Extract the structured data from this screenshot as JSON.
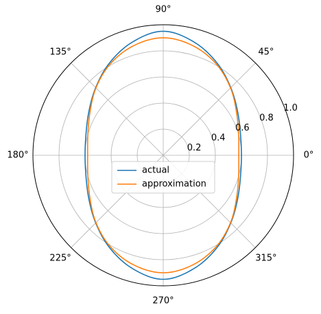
{
  "chart_data": {
    "type": "line",
    "projection": "polar",
    "theta_unit": "degrees",
    "angle_ticks": [
      {
        "value": 0,
        "label": "0°"
      },
      {
        "value": 45,
        "label": "45°"
      },
      {
        "value": 90,
        "label": "90°"
      },
      {
        "value": 135,
        "label": "135°"
      },
      {
        "value": 180,
        "label": "180°"
      },
      {
        "value": 225,
        "label": "225°"
      },
      {
        "value": 270,
        "label": "270°"
      },
      {
        "value": 315,
        "label": "315°"
      }
    ],
    "radial_ticks": [
      {
        "value": 0.2,
        "label": "0.2"
      },
      {
        "value": 0.4,
        "label": "0.4"
      },
      {
        "value": 0.6,
        "label": "0.6"
      },
      {
        "value": 0.8,
        "label": "0.8"
      },
      {
        "value": 1.0,
        "label": "1.0"
      }
    ],
    "rlim": [
      0,
      1.0
    ],
    "grid": true,
    "legend": {
      "placement": "center"
    },
    "series": [
      {
        "name": "actual",
        "color": "#1f77b4",
        "theta": [
          0,
          15,
          30,
          45,
          60,
          75,
          90,
          105,
          120,
          135,
          150,
          165,
          180,
          195,
          210,
          225,
          240,
          255,
          270,
          285,
          300,
          315,
          330,
          345,
          360
        ],
        "r": [
          0.6,
          0.614,
          0.66,
          0.733,
          0.82,
          0.9,
          0.95,
          0.9,
          0.82,
          0.733,
          0.66,
          0.614,
          0.6,
          0.614,
          0.66,
          0.733,
          0.82,
          0.9,
          0.95,
          0.9,
          0.82,
          0.733,
          0.66,
          0.614,
          0.6
        ]
      },
      {
        "name": "approximation",
        "color": "#ff7f0e",
        "theta": [
          0,
          15,
          30,
          45,
          60,
          75,
          90,
          105,
          120,
          135,
          150,
          165,
          180,
          195,
          210,
          225,
          240,
          255,
          270,
          285,
          300,
          315,
          330,
          345,
          360
        ],
        "r": [
          0.58,
          0.599,
          0.65,
          0.73,
          0.81,
          0.87,
          0.9,
          0.87,
          0.81,
          0.73,
          0.65,
          0.599,
          0.58,
          0.599,
          0.65,
          0.73,
          0.81,
          0.87,
          0.9,
          0.87,
          0.81,
          0.73,
          0.65,
          0.599,
          0.58
        ]
      }
    ]
  }
}
